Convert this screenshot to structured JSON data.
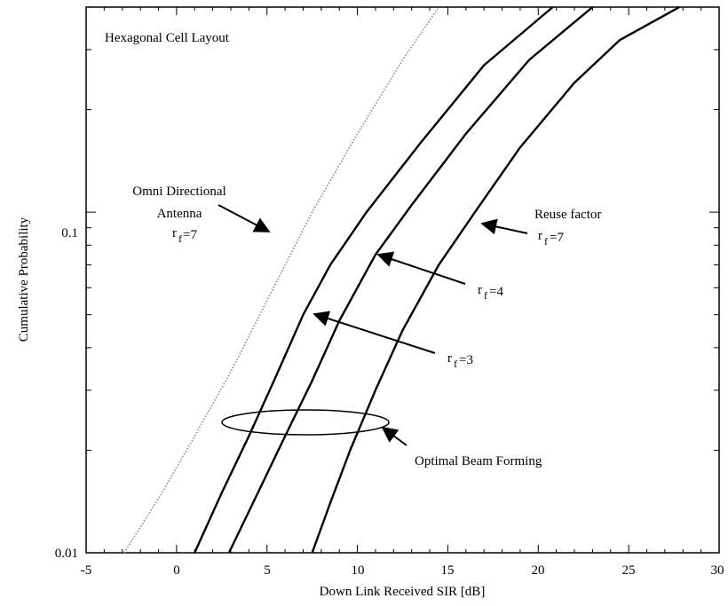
{
  "chart_data": {
    "type": "line",
    "title": "Hexagonal Cell Layout",
    "xlabel": "Down Link Received SIR [dB]",
    "ylabel": "Cumulative Probability",
    "xlim": [
      -5,
      30
    ],
    "ylim": [
      0.01,
      0.4
    ],
    "yscale": "log",
    "xticks": [
      -5,
      0,
      5,
      10,
      15,
      20,
      25,
      30
    ],
    "yticks": [
      0.01,
      0.1
    ],
    "grid": false,
    "series": [
      {
        "style": "dotted",
        "color": "#888888",
        "points": [
          [
            -2.9,
            0.01
          ],
          [
            -0.8,
            0.015
          ],
          [
            1.0,
            0.022
          ],
          [
            3.0,
            0.034
          ],
          [
            5.0,
            0.055
          ],
          [
            7.5,
            0.1
          ],
          [
            10.0,
            0.17
          ],
          [
            12.5,
            0.28
          ],
          [
            14.5,
            0.4
          ]
        ]
      },
      {
        "style": "solid",
        "color": "#000000",
        "points": [
          [
            1.0,
            0.01
          ],
          [
            2.5,
            0.015
          ],
          [
            4.0,
            0.022
          ],
          [
            5.5,
            0.033
          ],
          [
            7.0,
            0.05
          ],
          [
            8.5,
            0.07
          ],
          [
            10.5,
            0.1
          ],
          [
            13.5,
            0.16
          ],
          [
            17.0,
            0.27
          ],
          [
            20.8,
            0.4
          ]
        ]
      },
      {
        "style": "solid",
        "color": "#000000",
        "points": [
          [
            2.9,
            0.01
          ],
          [
            4.5,
            0.015
          ],
          [
            6.0,
            0.022
          ],
          [
            7.5,
            0.032
          ],
          [
            9.0,
            0.048
          ],
          [
            11.0,
            0.075
          ],
          [
            13.0,
            0.105
          ],
          [
            16.0,
            0.17
          ],
          [
            19.5,
            0.28
          ],
          [
            23.0,
            0.4
          ]
        ]
      },
      {
        "style": "solid",
        "color": "#000000",
        "points": [
          [
            7.5,
            0.01
          ],
          [
            8.5,
            0.014
          ],
          [
            9.6,
            0.02
          ],
          [
            11.0,
            0.03
          ],
          [
            12.5,
            0.045
          ],
          [
            14.5,
            0.07
          ],
          [
            16.5,
            0.1
          ],
          [
            19.0,
            0.155
          ],
          [
            22.0,
            0.24
          ],
          [
            24.5,
            0.32
          ],
          [
            27.8,
            0.4
          ]
        ]
      }
    ],
    "annotations": {
      "omni": {
        "line1": "Omni Directional",
        "line2": "Antenna",
        "r": "r",
        "sub": "f",
        "eq": "=7"
      },
      "reuse": {
        "line1": "Reuse factor",
        "r": "r",
        "sub": "f",
        "eq": "=7"
      },
      "rf4": {
        "r": "r",
        "sub": "f",
        "eq": "=4"
      },
      "rf3": {
        "r": "r",
        "sub": "f",
        "eq": "=3"
      },
      "beam": "Optimal Beam Forming"
    }
  }
}
